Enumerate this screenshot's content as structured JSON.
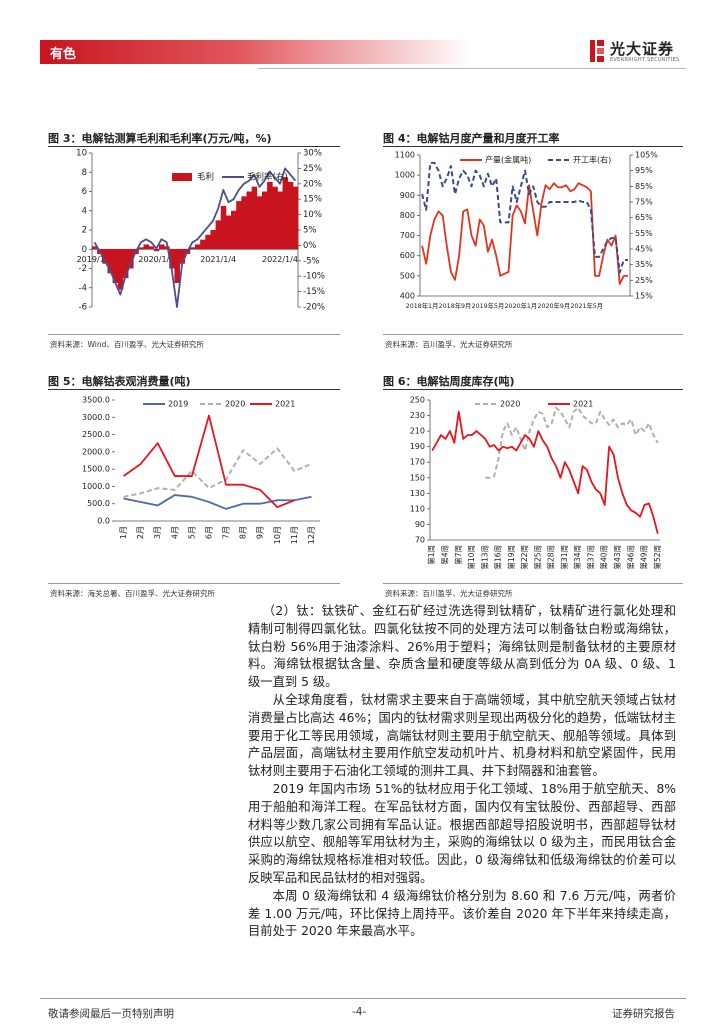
{
  "header": {
    "section": "有色",
    "logo_cn": "光大证券",
    "logo_en": "EVERBRIGHT SECURITIES"
  },
  "chart_data": [
    {
      "type": "line",
      "title": "图 3：电解钴测算毛利和毛利率(万元/吨，%)",
      "source": "资料来源：Wind、百川盈孚、光大证券研究所",
      "categories": [
        "2019/1/4",
        null,
        null,
        null,
        null,
        null,
        null,
        null,
        null,
        null,
        null,
        null,
        "2020/1/4",
        null,
        null,
        null,
        null,
        null,
        null,
        null,
        null,
        null,
        null,
        null,
        "2021/1/4",
        null,
        null,
        null,
        null,
        null,
        null,
        null,
        null,
        null,
        null,
        null,
        "2022/1/4",
        null,
        null,
        null
      ],
      "ylim": [
        -6,
        10
      ],
      "yticks": [
        -6,
        -4,
        -2,
        0,
        2,
        4,
        6,
        8,
        10
      ],
      "y2lim": [
        -20,
        30
      ],
      "y2ticks": [
        {
          "value": -20,
          "label": "-20%"
        },
        {
          "value": -15,
          "label": "-15%"
        },
        {
          "value": -10,
          "label": "-10%"
        },
        {
          "value": -5,
          "label": "-5%"
        },
        {
          "value": 0,
          "label": "0%"
        },
        {
          "value": 5,
          "label": "5%"
        },
        {
          "value": 10,
          "label": "10%"
        },
        {
          "value": 15,
          "label": "15%"
        },
        {
          "value": 20,
          "label": "20%"
        },
        {
          "value": 25,
          "label": "25%"
        },
        {
          "value": 30,
          "label": "30%"
        }
      ],
      "series": [
        {
          "name": "毛利",
          "color": "#c8141e",
          "style": "area",
          "values": [
            0.3,
            -0.5,
            -1.5,
            -2.5,
            -3.5,
            -4.2,
            -3.0,
            -2.0,
            -0.5,
            0.2,
            0.5,
            0.3,
            -0.2,
            0.5,
            0.3,
            -2.0,
            -3.5,
            -1.5,
            -0.5,
            0.2,
            0.5,
            1.0,
            1.5,
            2.0,
            3.0,
            4.5,
            3.5,
            4.0,
            5.0,
            5.5,
            6.0,
            6.5,
            5.5,
            6.0,
            7.0,
            6.5,
            6.0,
            7.5,
            7.0,
            6.5
          ]
        },
        {
          "name": "毛利率(右)",
          "color": "#4a4f8f",
          "style": "solid",
          "axis": "y2",
          "values": [
            1,
            -2,
            -5,
            -8,
            -12,
            -16,
            -10,
            -6,
            -2,
            1,
            2,
            1,
            -1,
            2,
            1,
            -8,
            -20,
            -6,
            -2,
            1,
            2,
            4,
            6,
            8,
            12,
            18,
            14,
            15,
            18,
            20,
            21,
            23,
            19,
            21,
            24,
            22,
            20,
            25,
            23,
            21
          ]
        }
      ]
    },
    {
      "type": "line",
      "title": "图 4：电解钴月度产量和月度开工率",
      "source": "资料来源：百川盈孚、光大证券研究所",
      "categories": [
        "2018年1月",
        null,
        null,
        null,
        null,
        null,
        null,
        null,
        "2018年9月",
        null,
        null,
        null,
        null,
        null,
        null,
        null,
        "2019年5月",
        null,
        null,
        null,
        null,
        null,
        null,
        null,
        "2020年1月",
        null,
        null,
        null,
        null,
        null,
        null,
        null,
        "2020年9月",
        null,
        null,
        null,
        null,
        null,
        null,
        null,
        "2021年5月",
        null,
        null,
        null,
        null,
        null,
        null,
        null,
        null,
        null,
        null
      ],
      "ylim": [
        400,
        1100
      ],
      "yticks": [
        400,
        500,
        600,
        700,
        800,
        900,
        1000,
        1100
      ],
      "y2lim": [
        15,
        105
      ],
      "y2ticks": [
        {
          "value": 15,
          "label": "15%"
        },
        {
          "value": 25,
          "label": "25%"
        },
        {
          "value": 35,
          "label": "35%"
        },
        {
          "value": 45,
          "label": "45%"
        },
        {
          "value": 55,
          "label": "55%"
        },
        {
          "value": 65,
          "label": "65%"
        },
        {
          "value": 75,
          "label": "75%"
        },
        {
          "value": 85,
          "label": "85%"
        },
        {
          "value": 95,
          "label": "95%"
        },
        {
          "value": 105,
          "label": "105%"
        }
      ],
      "series": [
        {
          "name": "产量(金属吨)",
          "color": "#e0341e",
          "style": "solid",
          "values": [
            650,
            560,
            700,
            780,
            820,
            800,
            650,
            520,
            480,
            600,
            820,
            830,
            700,
            650,
            780,
            750,
            620,
            680,
            600,
            500,
            510,
            520,
            800,
            850,
            820,
            760,
            950,
            820,
            700,
            860,
            950,
            930,
            960,
            940,
            940,
            950,
            920,
            930,
            960,
            950,
            940,
            920,
            500,
            500,
            600,
            680,
            650,
            700,
            460,
            500,
            500
          ]
        },
        {
          "name": "开工率(右)",
          "color": "#3d4a8a",
          "style": "dashed",
          "axis": "y2",
          "values": [
            80,
            70,
            100,
            100,
            95,
            85,
            90,
            98,
            80,
            90,
            95,
            92,
            85,
            95,
            92,
            85,
            93,
            85,
            90,
            62,
            62,
            62,
            85,
            75,
            85,
            95,
            80,
            85,
            75,
            72,
            72,
            75,
            75,
            75,
            75,
            75,
            75,
            75,
            76,
            75,
            75,
            70,
            40,
            40,
            45,
            50,
            52,
            52,
            30,
            38,
            38
          ]
        }
      ]
    },
    {
      "type": "line",
      "title": "图 5：电解钴表观消费量(吨)",
      "source": "资料来源：海关总署、百川盈孚、光大证券研究所",
      "categories": [
        "1月",
        "2月",
        "3月",
        "4月",
        "5月",
        "6月",
        "7月",
        "8月",
        "9月",
        "10月",
        "11月",
        "12月"
      ],
      "ylim": [
        0,
        3500
      ],
      "yticks": [
        {
          "value": 0,
          "label": "0.0"
        },
        {
          "value": 500,
          "label": "500.0"
        },
        {
          "value": 1000,
          "label": "1000.0"
        },
        {
          "value": 1500,
          "label": "1500.0"
        },
        {
          "value": 2000,
          "label": "2000.0"
        },
        {
          "value": 2500,
          "label": "2500.0"
        },
        {
          "value": 3000,
          "label": "3000.0"
        },
        {
          "value": 3500,
          "label": "3500.0"
        }
      ],
      "series": [
        {
          "name": "2019",
          "color": "#4f6ba6",
          "style": "solid",
          "values": [
            650,
            550,
            450,
            750,
            700,
            550,
            350,
            500,
            500,
            600,
            600,
            700
          ]
        },
        {
          "name": "2020",
          "color": "#b0b0b0",
          "style": "dashed",
          "values": [
            700,
            800,
            950,
            900,
            1450,
            950,
            1200,
            2050,
            1650,
            2100,
            1450,
            1650
          ]
        },
        {
          "name": "2021",
          "color": "#e3161c",
          "style": "solid",
          "values": [
            1300,
            1650,
            2250,
            1300,
            1300,
            3050,
            1050,
            1050,
            900,
            400,
            600,
            null
          ]
        }
      ]
    },
    {
      "type": "line",
      "title": "图 6：电解钴周度库存(吨)",
      "source": "资料来源：百川盈孚、光大证券研究所",
      "categories": [
        "第1周",
        null,
        null,
        "第4周",
        null,
        null,
        "第7周",
        null,
        null,
        "第10周",
        null,
        null,
        "第13周",
        null,
        null,
        "第16周",
        null,
        null,
        "第19周",
        null,
        null,
        "第22周",
        null,
        null,
        "第25周",
        null,
        null,
        "第28周",
        null,
        null,
        "第31周",
        null,
        null,
        "第34周",
        null,
        null,
        "第37周",
        null,
        null,
        "第40周",
        null,
        null,
        "第43周",
        null,
        null,
        "第46周",
        null,
        null,
        "第49周",
        null,
        null,
        "第52周"
      ],
      "ylim": [
        70,
        250
      ],
      "yticks": [
        70,
        90,
        110,
        130,
        150,
        170,
        190,
        210,
        230,
        250
      ],
      "series": [
        {
          "name": "2020",
          "color": "#b0b0b0",
          "style": "dashed",
          "values": [
            null,
            null,
            null,
            null,
            null,
            null,
            null,
            null,
            null,
            null,
            null,
            null,
            150,
            150,
            152,
            175,
            210,
            220,
            205,
            215,
            200,
            185,
            210,
            225,
            235,
            232,
            215,
            220,
            240,
            235,
            225,
            215,
            235,
            240,
            230,
            225,
            220,
            220,
            235,
            225,
            218,
            225,
            215,
            220,
            218,
            225,
            205,
            215,
            210,
            220,
            205,
            195
          ]
        },
        {
          "name": "2021",
          "color": "#e3161c",
          "style": "solid",
          "values": [
            185,
            195,
            205,
            200,
            210,
            195,
            235,
            200,
            205,
            205,
            210,
            205,
            200,
            190,
            192,
            185,
            190,
            188,
            190,
            185,
            195,
            205,
            200,
            190,
            210,
            198,
            190,
            175,
            165,
            150,
            170,
            160,
            145,
            130,
            165,
            160,
            145,
            135,
            130,
            115,
            190,
            180,
            150,
            130,
            115,
            108,
            105,
            100,
            115,
            117,
            100,
            78
          ]
        }
      ]
    }
  ],
  "paragraphs": [
    "（2）钛：钛铁矿、金红石矿经过洗选得到钛精矿，钛精矿进行氯化处理和精制可制得四氯化钛。四氯化钛按不同的处理方法可以制备钛白粉或海绵钛，钛白粉 56%用于油漆涂料、26%用于塑料；海绵钛则是制备钛材的主要原材料。海绵钛根据钛含量、杂质含量和硬度等级从高到低分为 0A 级、0 级、1 级一直到 5 级。",
    "从全球角度看，钛材需求主要来自于高端领域，其中航空航天领域占钛材消费量占比高达 46%；国内的钛材需求则呈现出两极分化的趋势，低端钛材主要用于化工等民用领域，高端钛材则主要用于航空航天、舰船等领域。具体到产品层面，高端钛材主要用作航空发动机叶片、机身材料和航空紧固件，民用钛材则主要用于石油化工领域的测井工具、井下封隔器和油套管。",
    "2019 年国内市场 51%的钛材应用于化工领域、18%用于航空航天、8%用于船舶和海洋工程。在军品钛材方面，国内仅有宝钛股份、西部超导、西部材料等少数几家公司拥有军品认证。根据西部超导招股说明书，西部超导钛材供应以航空、舰船等军用钛材为主，采购的海绵钛以 0 级为主，而民用钛合金采购的海绵钛规格标准相对较低。因此，0 级海绵钛和低级海绵钛的价差可以反映军品和民品钛材的相对强弱。",
    "本周 0 级海绵钛和 4 级海绵钛价格分别为 8.60 和 7.6 万元/吨，两者价差 1.00 万元/吨，环比保持上周持平。该价差自 2020 年下半年来持续走高，目前处于 2020 年来最高水平。"
  ],
  "footer": {
    "left": "敬请参阅最后一页特别声明",
    "page": "-4-",
    "right": "证券研究报告"
  }
}
